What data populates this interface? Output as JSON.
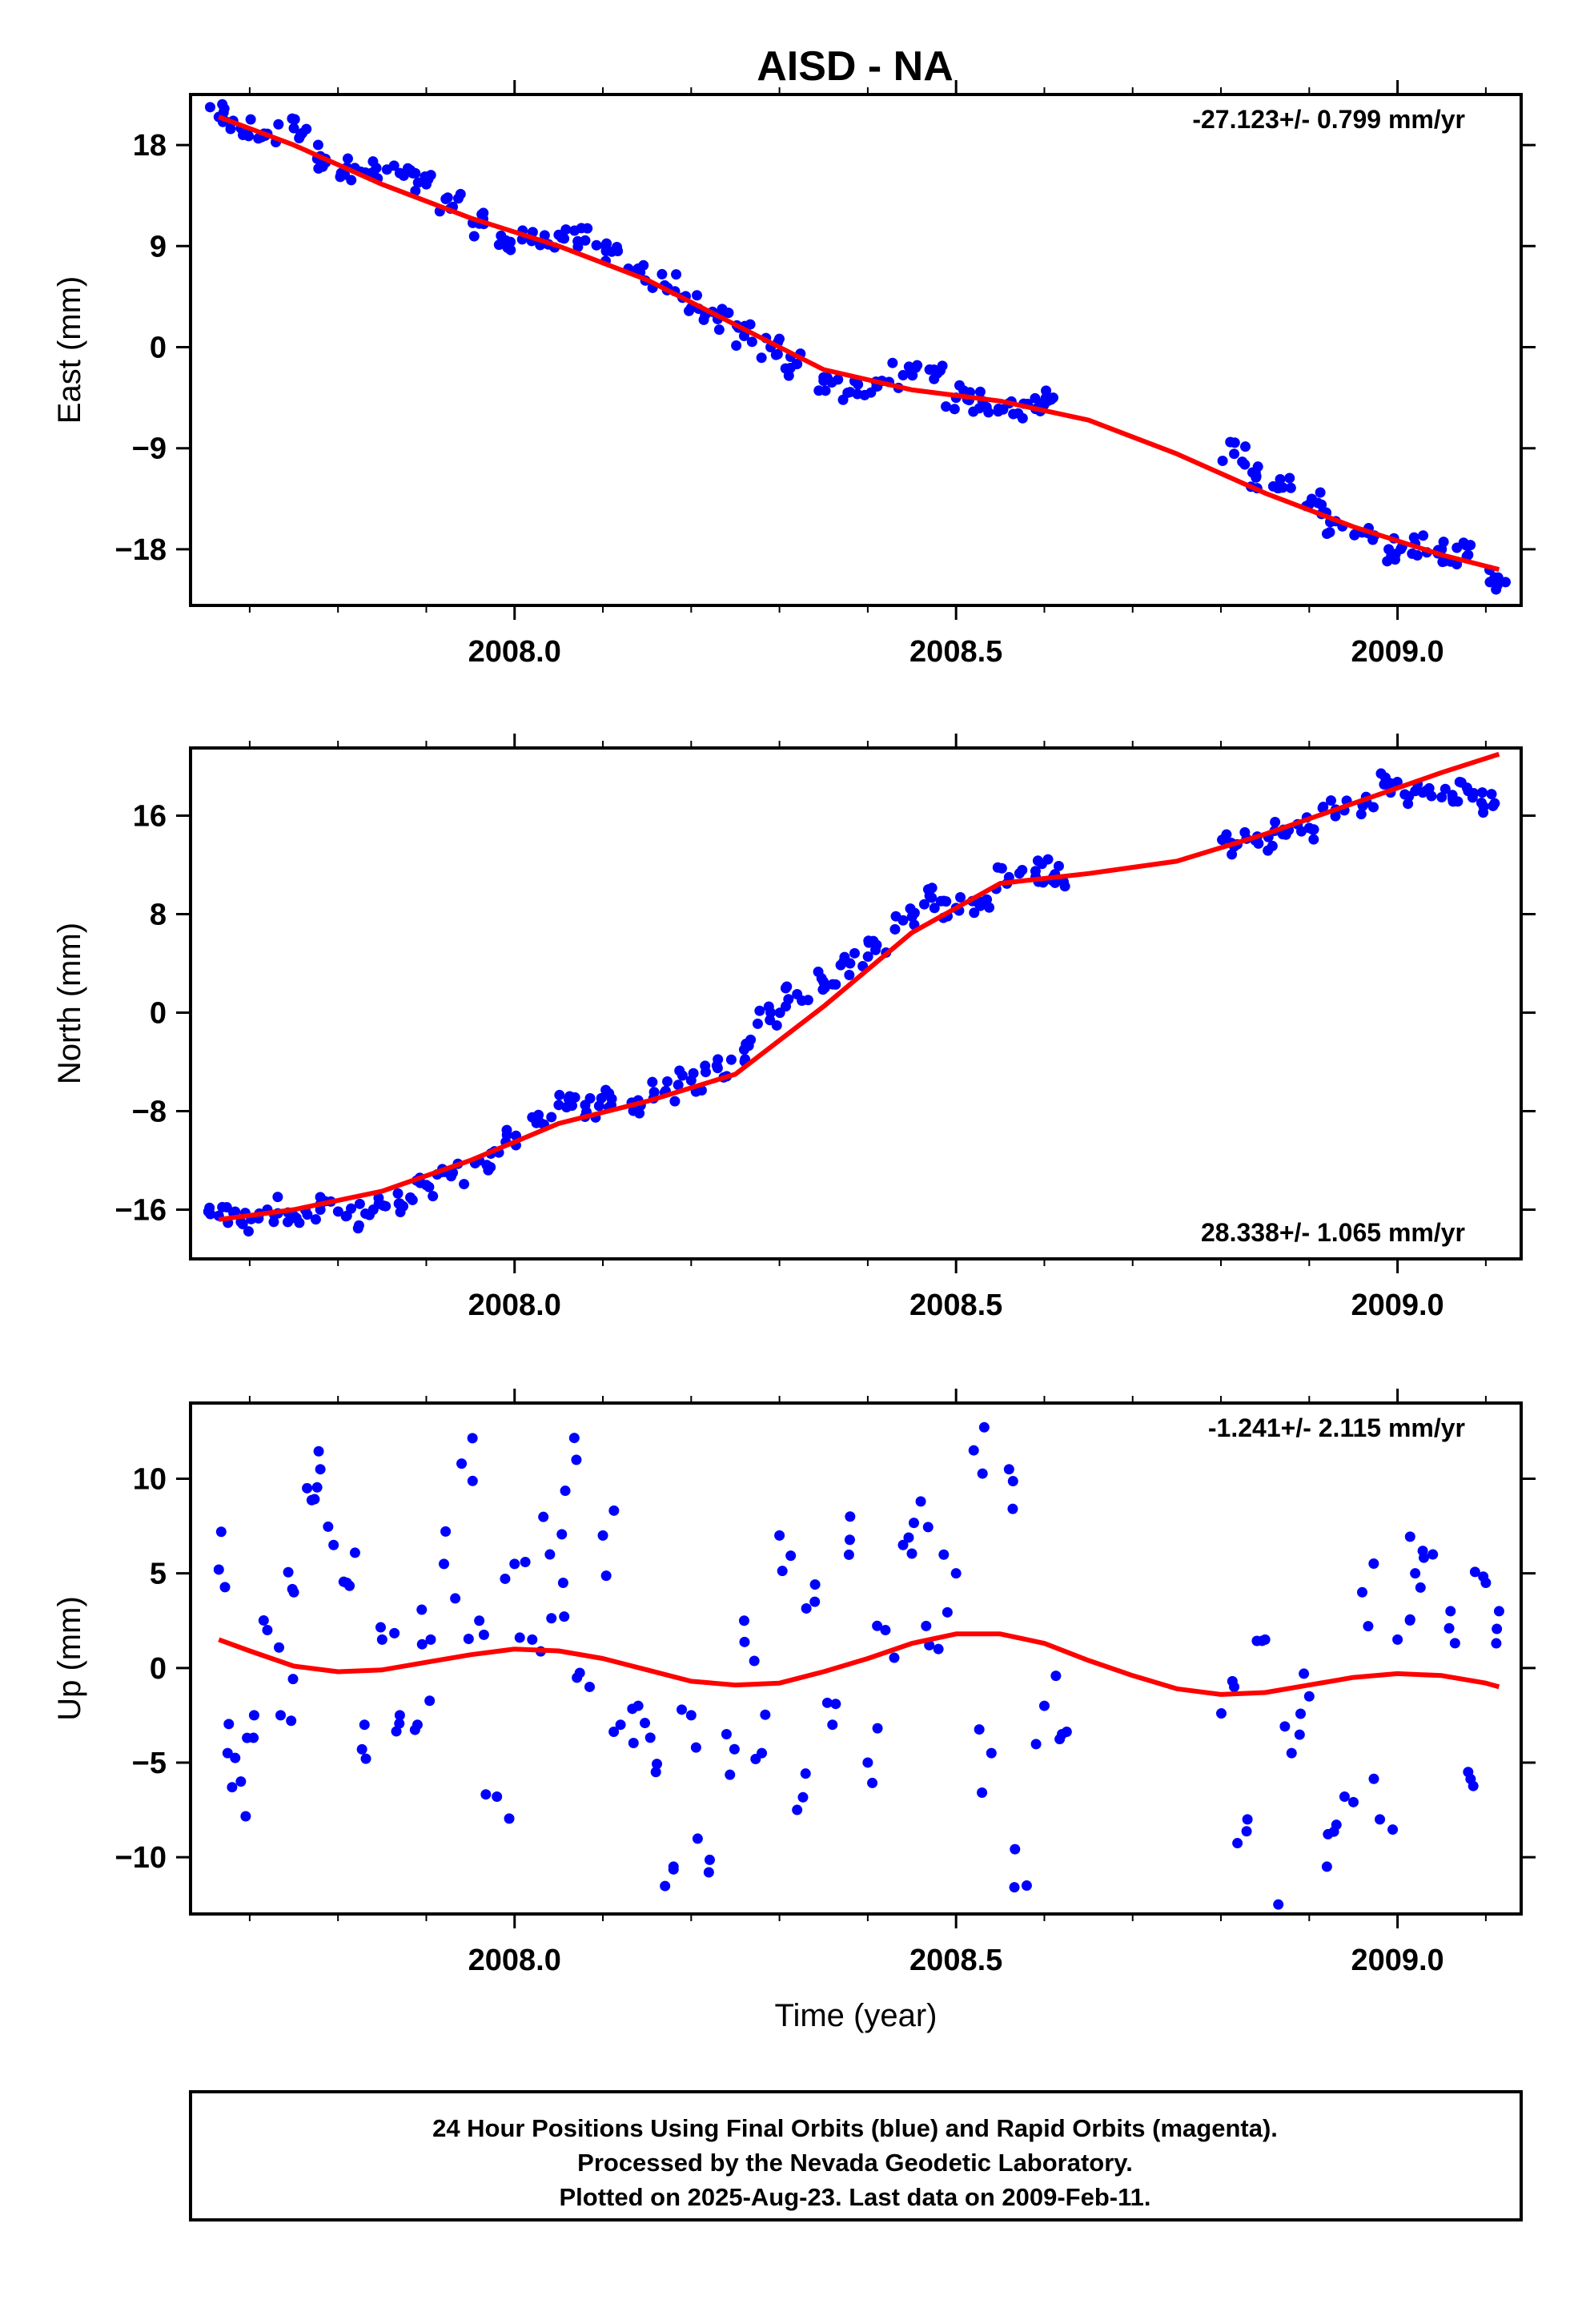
{
  "figure_title": "AISD - NA",
  "footer": {
    "line1": "24 Hour Positions Using Final Orbits (blue) and Rapid Orbits (magenta).",
    "line2": "Processed by the Nevada Geodetic Laboratory.",
    "line3": "Plotted on 2025-Aug-23. Last data on 2009-Feb-11."
  },
  "colors": {
    "data_points": "#0000ff",
    "model_curve": "#ff0000",
    "frame": "#000000"
  },
  "chart_data": [
    {
      "type": "scatter",
      "title": "AISD - NA",
      "xlabel": "",
      "ylabel": "East (mm)",
      "xlim": [
        2007.633,
        2009.14
      ],
      "ylim": [
        -23,
        22.5
      ],
      "xticks": [
        2008.0,
        2008.5,
        2009.0
      ],
      "xtick_labels": [
        "2008.0",
        "2008.5",
        "2009.0"
      ],
      "yticks": [
        18,
        9,
        0,
        -9,
        -18
      ],
      "ytick_labels": [
        "18",
        "9",
        "0",
        "−9",
        "−18"
      ],
      "rate_label": "-27.123+/- 0.799 mm/yr",
      "rate_position": "top-right",
      "grid": false,
      "series": [
        {
          "name": "",
          "kind": "points",
          "color": "#0000ff",
          "x": [
            2007.665,
            2007.69,
            2007.72,
            2007.75,
            2007.78,
            2007.81,
            2007.84,
            2007.87,
            2007.9,
            2007.93,
            2007.96,
            2007.99,
            2008.02,
            2008.05,
            2008.08,
            2008.11,
            2008.14,
            2008.17,
            2008.2,
            2008.23,
            2008.26,
            2008.29,
            2008.32,
            2008.35,
            2008.38,
            2008.41,
            2008.44,
            2008.47,
            2008.5,
            2008.53,
            2008.56,
            2008.59,
            2008.61,
            2008.815,
            2008.84,
            2008.87,
            2008.9,
            2008.93,
            2008.96,
            2008.99,
            2009.02,
            2009.05,
            2009.08,
            2009.11
          ],
          "y": [
            20.5,
            19.5,
            19.0,
            19.5,
            17.0,
            16.0,
            15.5,
            15.5,
            14.5,
            12.5,
            11.0,
            9.5,
            9.5,
            10.0,
            9.5,
            8.5,
            7.0,
            5.5,
            3.5,
            2.5,
            1.0,
            0.0,
            -1.5,
            -3.0,
            -4.0,
            -3.5,
            -2.5,
            -2.0,
            -4.5,
            -4.8,
            -5.0,
            -5.5,
            -4.5,
            -9.5,
            -11.5,
            -12.5,
            -14.0,
            -15.5,
            -16.5,
            -18.0,
            -17.5,
            -18.0,
            -18.5,
            -20.5
          ]
        },
        {
          "name": "",
          "kind": "line",
          "color": "#ff0000",
          "x": [
            2007.665,
            2007.75,
            2007.85,
            2007.95,
            2008.05,
            2008.15,
            2008.25,
            2008.35,
            2008.45,
            2008.55,
            2008.65,
            2008.75,
            2008.85,
            2008.95,
            2009.05,
            2009.115
          ],
          "y": [
            20.5,
            18.0,
            14.5,
            11.5,
            9.0,
            6.0,
            2.0,
            -2.0,
            -3.8,
            -4.8,
            -6.5,
            -9.5,
            -13.0,
            -16.0,
            -18.5,
            -19.8
          ]
        }
      ]
    },
    {
      "type": "scatter",
      "xlabel": "",
      "ylabel": "North (mm)",
      "xlim": [
        2007.633,
        2009.14
      ],
      "ylim": [
        -20,
        21.5
      ],
      "xticks": [
        2008.0,
        2008.5,
        2009.0
      ],
      "xtick_labels": [
        "2008.0",
        "2008.5",
        "2009.0"
      ],
      "yticks": [
        16,
        8,
        0,
        -8,
        -16
      ],
      "ytick_labels": [
        "16",
        "8",
        "0",
        "−8",
        "−16"
      ],
      "rate_label": "28.338+/- 1.065 mm/yr",
      "rate_position": "bottom-right",
      "grid": false,
      "series": [
        {
          "name": "",
          "kind": "points",
          "color": "#0000ff",
          "x": [
            2007.665,
            2007.69,
            2007.72,
            2007.75,
            2007.78,
            2007.81,
            2007.84,
            2007.87,
            2007.9,
            2007.93,
            2007.96,
            2007.99,
            2008.02,
            2008.05,
            2008.08,
            2008.11,
            2008.14,
            2008.17,
            2008.2,
            2008.23,
            2008.26,
            2008.29,
            2008.32,
            2008.35,
            2008.38,
            2008.41,
            2008.44,
            2008.47,
            2008.5,
            2008.53,
            2008.56,
            2008.59,
            2008.61,
            2008.815,
            2008.84,
            2008.87,
            2008.9,
            2008.93,
            2008.96,
            2008.99,
            2009.02,
            2009.05,
            2009.08,
            2009.11
          ],
          "y": [
            -16.5,
            -17.0,
            -16.0,
            -16.5,
            -16.0,
            -16.5,
            -16.0,
            -15.5,
            -14.0,
            -13.0,
            -12.0,
            -10.5,
            -8.5,
            -7.5,
            -7.5,
            -7.0,
            -7.5,
            -6.5,
            -5.5,
            -4.5,
            -3.0,
            0.0,
            1.5,
            2.5,
            4.0,
            5.5,
            7.5,
            9.5,
            8.5,
            9.0,
            11.0,
            11.5,
            11.0,
            13.5,
            14.0,
            14.5,
            15.0,
            16.5,
            17.0,
            18.5,
            18.0,
            17.5,
            18.0,
            17.0
          ]
        },
        {
          "name": "",
          "kind": "line",
          "color": "#ff0000",
          "x": [
            2007.665,
            2007.75,
            2007.85,
            2007.95,
            2008.05,
            2008.15,
            2008.25,
            2008.35,
            2008.45,
            2008.55,
            2008.65,
            2008.75,
            2008.85,
            2008.95,
            2009.05,
            2009.115
          ],
          "y": [
            -16.8,
            -16.0,
            -14.5,
            -12.0,
            -9.0,
            -7.2,
            -5.0,
            0.5,
            6.5,
            10.5,
            11.3,
            12.3,
            14.5,
            17.0,
            19.5,
            21.0
          ]
        }
      ]
    },
    {
      "type": "scatter",
      "xlabel": "Time (year)",
      "ylabel": "Up (mm)",
      "xlim": [
        2007.633,
        2009.14
      ],
      "ylim": [
        -13,
        14
      ],
      "xticks": [
        2008.0,
        2008.5,
        2009.0
      ],
      "xtick_labels": [
        "2008.0",
        "2008.5",
        "2009.0"
      ],
      "yticks": [
        10,
        5,
        0,
        -5,
        -10
      ],
      "ytick_labels": [
        "10",
        "5",
        "0",
        "−5",
        "−10"
      ],
      "rate_label": "-1.241+/- 2.115 mm/yr",
      "rate_position": "top-right",
      "grid": false,
      "series": [
        {
          "name": "",
          "kind": "points",
          "color": "#0000ff",
          "x": [
            2007.665,
            2007.675,
            2007.69,
            2007.705,
            2007.72,
            2007.735,
            2007.75,
            2007.765,
            2007.78,
            2007.795,
            2007.81,
            2007.83,
            2007.85,
            2007.87,
            2007.89,
            2007.905,
            2007.92,
            2007.94,
            2007.96,
            2007.98,
            2008.0,
            2008.02,
            2008.04,
            2008.055,
            2008.07,
            2008.085,
            2008.1,
            2008.12,
            2008.14,
            2008.16,
            2008.18,
            2008.2,
            2008.22,
            2008.24,
            2008.26,
            2008.28,
            2008.3,
            2008.32,
            2008.34,
            2008.36,
            2008.38,
            2008.4,
            2008.42,
            2008.44,
            2008.46,
            2008.48,
            2008.5,
            2008.52,
            2008.54,
            2008.56,
            2008.58,
            2008.6,
            2008.62,
            2008.815,
            2008.83,
            2008.85,
            2008.865,
            2008.88,
            2008.9,
            2008.92,
            2008.94,
            2008.96,
            2008.98,
            2009.0,
            2009.02,
            2009.04,
            2009.06,
            2009.08,
            2009.1,
            2009.115
          ],
          "y": [
            5.2,
            -4.5,
            -6.0,
            -2.5,
            2.0,
            -2.5,
            4.0,
            9.5,
            10.5,
            6.5,
            4.5,
            -3.0,
            1.5,
            -2.5,
            -3.0,
            1.5,
            5.5,
            10.8,
            2.5,
            -6.8,
            5.5,
            1.5,
            6.0,
            4.5,
            11.0,
            -1.0,
            7.0,
            -3.0,
            -2.0,
            -5.5,
            -10.5,
            -2.5,
            -10.8,
            -3.5,
            2.5,
            -4.5,
            7.0,
            -7.5,
            3.5,
            -3.0,
            8.0,
            -5.0,
            2.0,
            6.5,
            8.8,
            1.0,
            5.0,
            11.5,
            -4.5,
            10.5,
            -11.5,
            -2.0,
            -3.5,
            -1.0,
            -8.0,
            1.5,
            -12.5,
            -4.5,
            -1.5,
            -10.5,
            -6.8,
            4.0,
            -8.0,
            1.5,
            5.0,
            6.0,
            3.0,
            -5.5,
            4.5,
            3.0
          ]
        },
        {
          "name": "",
          "kind": "line",
          "color": "#ff0000",
          "x": [
            2007.665,
            2007.7,
            2007.75,
            2007.8,
            2007.85,
            2007.9,
            2007.95,
            2008.0,
            2008.05,
            2008.1,
            2008.15,
            2008.2,
            2008.25,
            2008.3,
            2008.35,
            2008.4,
            2008.45,
            2008.5,
            2008.55,
            2008.6,
            2008.65,
            2008.7,
            2008.75,
            2008.8,
            2008.85,
            2008.9,
            2008.95,
            2009.0,
            2009.05,
            2009.1,
            2009.115
          ],
          "y": [
            1.5,
            0.9,
            0.1,
            -0.2,
            -0.1,
            0.3,
            0.7,
            1.0,
            0.9,
            0.5,
            -0.1,
            -0.7,
            -0.9,
            -0.8,
            -0.2,
            0.5,
            1.3,
            1.8,
            1.8,
            1.3,
            0.4,
            -0.4,
            -1.1,
            -1.4,
            -1.3,
            -0.9,
            -0.5,
            -0.3,
            -0.4,
            -0.8,
            -1.0
          ]
        }
      ]
    }
  ]
}
